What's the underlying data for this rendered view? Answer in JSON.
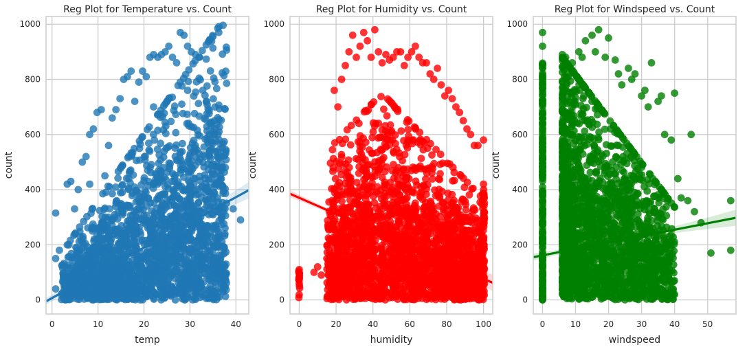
{
  "chart_data": [
    {
      "type": "scatter",
      "title": "Reg Plot for Temperature vs. Count",
      "xlabel": "temp",
      "ylabel": "count",
      "xlim": [
        -1.3,
        42.8
      ],
      "ylim": [
        -51,
        1028
      ],
      "xticks": [
        0,
        10,
        20,
        30,
        40
      ],
      "yticks": [
        0,
        200,
        400,
        600,
        800,
        1000
      ],
      "xtick_labels": [
        "0",
        "10",
        "20",
        "30",
        "40"
      ],
      "ytick_labels": [
        "0",
        "200",
        "400",
        "600",
        "800",
        "1000"
      ],
      "grid": true,
      "color": "#1f77b4",
      "series": [
        {
          "values": {
            "x": [
              0.8,
              0.8,
              0.8,
              1.6,
              2.5,
              3.3,
              4.1,
              4.9,
              5.7,
              6.6,
              7.4,
              8.2,
              8.2,
              9.0,
              9.8,
              10.7,
              11.5,
              12.3,
              12.3,
              13.1,
              13.9,
              14.8,
              15.6,
              16.4,
              17.2,
              18.0,
              18.9,
              19.7,
              20.5,
              21.3,
              22.1,
              22.1,
              23.0,
              23.8,
              24.6,
              25.4,
              26.2,
              27.1,
              27.9,
              28.7,
              29.5,
              29.5,
              30.3,
              31.2,
              32.0,
              32.8,
              33.6,
              34.4,
              35.3,
              36.1,
              36.9,
              37.7,
              39.4,
              41.0
            ],
            "y": [
              315,
              150,
              40,
              180,
              90,
              420,
              430,
              330,
              400,
              500,
              520,
              600,
              420,
              620,
              680,
              690,
              450,
              560,
              300,
              660,
              690,
              730,
              800,
              810,
              830,
              720,
              790,
              830,
              810,
              880,
              890,
              700,
              880,
              890,
              900,
              920,
              880,
              860,
              970,
              960,
              920,
              760,
              900,
              890,
              880,
              760,
              720,
              640,
              600,
              600,
              520,
              480,
              330,
              290
            ]
          }
        }
      ],
      "regression": {
        "x": [
          -1.3,
          42.8
        ],
        "y": [
          -5,
          398
        ],
        "color": "#1f77b4"
      }
    },
    {
      "type": "scatter",
      "title": "Reg Plot for Humidity vs. Count",
      "xlabel": "humidity",
      "ylabel": "count",
      "xlim": [
        -5,
        105
      ],
      "ylim": [
        -51,
        1028
      ],
      "xticks": [
        0,
        20,
        40,
        60,
        80,
        100
      ],
      "yticks": [
        0,
        200,
        400,
        600,
        800,
        1000
      ],
      "xtick_labels": [
        "0",
        "20",
        "40",
        "60",
        "80",
        "100"
      ],
      "ytick_labels": [
        "0",
        "200",
        "400",
        "600",
        "800",
        "1000"
      ],
      "grid": true,
      "color": "#ff0000",
      "series": [
        {
          "values": {
            "x": [
              0,
              0,
              0,
              8,
              10,
              12,
              15,
              17,
              19,
              21,
              23,
              25,
              27,
              29,
              31,
              33,
              35,
              37,
              39,
              41,
              43,
              45,
              47,
              49,
              51,
              53,
              55,
              57,
              59,
              61,
              63,
              65,
              67,
              69,
              71,
              73,
              75,
              77,
              79,
              81,
              83,
              85,
              87,
              89,
              91,
              93,
              95,
              97,
              100,
              100,
              100
            ],
            "y": [
              110,
              80,
              60,
              100,
              120,
              90,
              150,
              200,
              760,
              700,
              800,
              850,
              900,
              960,
              880,
              920,
              970,
              940,
              880,
              980,
              900,
              860,
              890,
              870,
              880,
              900,
              900,
              850,
              880,
              900,
              920,
              880,
              860,
              860,
              820,
              800,
              840,
              780,
              740,
              760,
              730,
              700,
              680,
              650,
              620,
              600,
              560,
              560,
              580,
              420,
              300
            ]
          }
        }
      ],
      "regression": {
        "x": [
          -5,
          105
        ],
        "y": [
          385,
          62
        ],
        "color": "#ff0000"
      }
    },
    {
      "type": "scatter",
      "title": "Reg Plot for Windspeed vs. Count",
      "xlabel": "windspeed",
      "ylabel": "count",
      "xlim": [
        -2.8,
        58.6
      ],
      "ylim": [
        -51,
        1028
      ],
      "xticks": [
        0,
        10,
        20,
        30,
        40,
        50
      ],
      "yticks": [
        0,
        200,
        400,
        600,
        800,
        1000
      ],
      "xtick_labels": [
        "0",
        "10",
        "20",
        "30",
        "40",
        "50"
      ],
      "ytick_labels": [
        "0",
        "200",
        "400",
        "600",
        "800",
        "1000"
      ],
      "grid": true,
      "color": "#008000",
      "series": [
        {
          "values": {
            "x": [
              0,
              0,
              0,
              6,
              7,
              8,
              9,
              11,
              12,
              13,
              15,
              16,
              17,
              19,
              20,
              22,
              23,
              24,
              26,
              27,
              28,
              30,
              31,
              32,
              33,
              35,
              36,
              37,
              39,
              40,
              41,
              42,
              44,
              45,
              46,
              48,
              51,
              57,
              57
            ],
            "y": [
              970,
              920,
              850,
              890,
              880,
              820,
              860,
              900,
              880,
              940,
              960,
              900,
              980,
              880,
              950,
              870,
              820,
              780,
              840,
              800,
              820,
              740,
              760,
              700,
              860,
              720,
              740,
              600,
              580,
              750,
              440,
              370,
              360,
              600,
              320,
              280,
              170,
              360,
              180
            ]
          }
        }
      ],
      "regression": {
        "x": [
          -2.8,
          58.6
        ],
        "y": [
          155,
          298
        ],
        "color": "#008000"
      }
    }
  ]
}
